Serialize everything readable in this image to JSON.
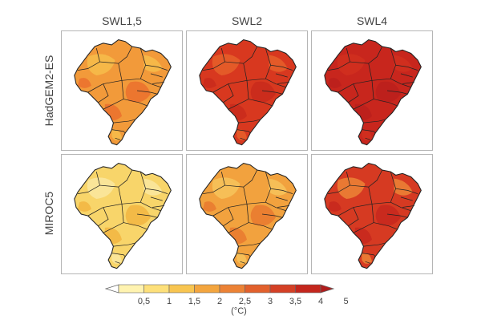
{
  "columns": [
    "SWL1,5",
    "SWL2",
    "SWL4"
  ],
  "rows": [
    "HadGEM2-ES",
    "MIROC5"
  ],
  "panels": [
    {
      "row": "HadGEM2-ES",
      "column": "SWL1,5",
      "base_color": "#f29a3a",
      "light_color": "#f7c24e",
      "dark_color": "#e96a2c"
    },
    {
      "row": "HadGEM2-ES",
      "column": "SWL2",
      "base_color": "#d8381f",
      "light_color": "#e8662c",
      "dark_color": "#c7281c"
    },
    {
      "row": "HadGEM2-ES",
      "column": "SWL4",
      "base_color": "#c8261d",
      "light_color": "#d3311f",
      "dark_color": "#b91f1c"
    },
    {
      "row": "MIROC5",
      "column": "SWL1,5",
      "base_color": "#f8d56a",
      "light_color": "#fbeaa8",
      "dark_color": "#f2b03c"
    },
    {
      "row": "MIROC5",
      "column": "SWL2",
      "base_color": "#f2a23e",
      "light_color": "#f7c860",
      "dark_color": "#e7732d"
    },
    {
      "row": "MIROC5",
      "column": "SWL4",
      "base_color": "#d63a22",
      "light_color": "#ef8f3a",
      "dark_color": "#c4261d"
    }
  ],
  "legend": {
    "ticks": [
      "0,5",
      "1",
      "1,5",
      "2",
      "2,5",
      "3",
      "3,5",
      "4",
      "5"
    ],
    "unit": "(°C)",
    "colors": [
      "#ffffff",
      "#fff3b0",
      "#fde07a",
      "#f8c550",
      "#f3a53e",
      "#ec8235",
      "#e2602c",
      "#d44025",
      "#c4261d",
      "#b01c1c"
    ]
  }
}
